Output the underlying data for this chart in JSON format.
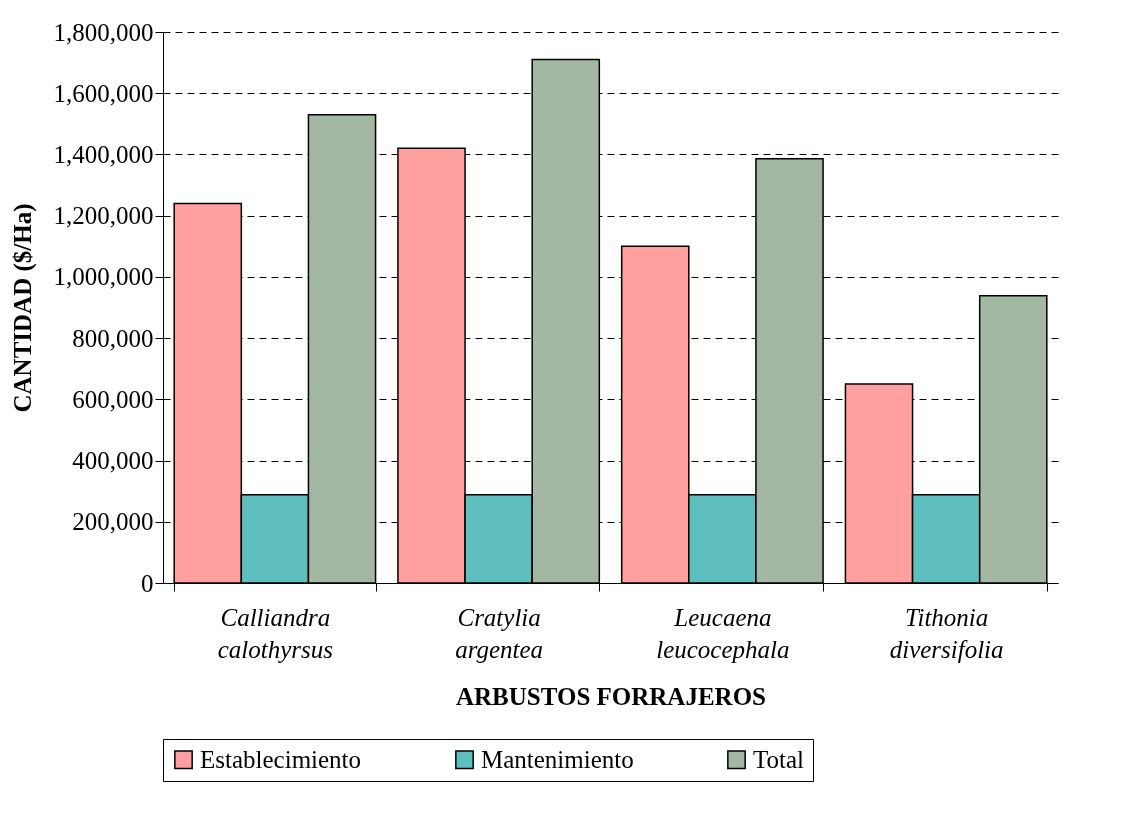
{
  "chart_data": {
    "type": "bar",
    "xlabel": "ARBUSTOS FORRAJEROS",
    "ylabel": "CANTIDAD ($/Ha)",
    "categories": [
      "Calliandra calothyrsus",
      "Cratylia argentea",
      "Leucaena leucocephala",
      "Tithonia diversifolia"
    ],
    "series": [
      {
        "name": "Establecimiento",
        "color": "#ff9f9f",
        "values": [
          1240000,
          1420000,
          1100000,
          650000
        ]
      },
      {
        "name": "Mantenimiento",
        "color": "#5fbfbf",
        "values": [
          288000,
          288000,
          288000,
          288000
        ]
      },
      {
        "name": "Total",
        "color": "#a3b8a3",
        "values": [
          1530000,
          1710000,
          1386000,
          938000
        ]
      }
    ],
    "ylim": [
      0,
      1800000
    ],
    "yticks": [
      0,
      {
        "value": 200000,
        "label": "200,000"
      },
      {
        "value": 400000,
        "label": "400,000"
      },
      {
        "value": 600000,
        "label": "600,000"
      },
      {
        "value": 800000,
        "label": "800,000"
      },
      {
        "value": 1000000,
        "label": "1,000,000"
      },
      {
        "value": 1200000,
        "label": "1,200,000"
      },
      {
        "value": 1400000,
        "label": "1,400,000"
      },
      {
        "value": 1600000,
        "label": "1,600,000"
      },
      {
        "value": 1800000,
        "label": "1,800,000"
      }
    ],
    "grid": "y",
    "legend": "bottom"
  }
}
